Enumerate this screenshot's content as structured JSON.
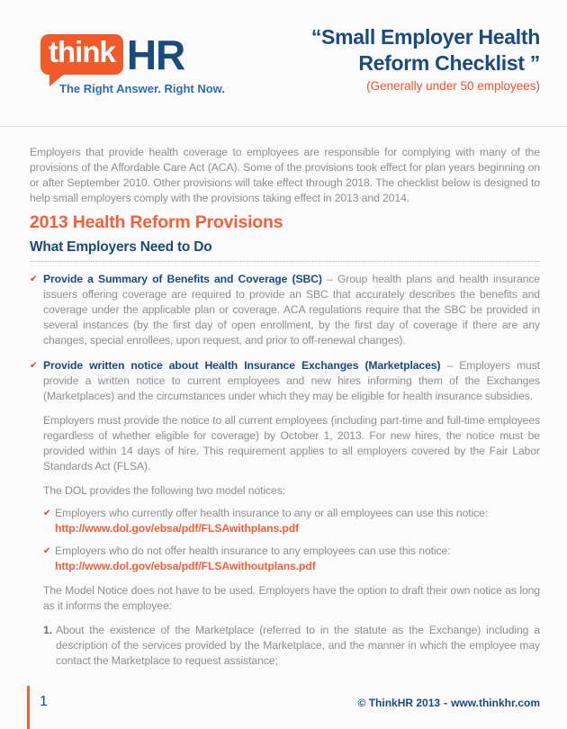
{
  "colors": {
    "navy": "#1b4a7e",
    "heading_orange": "#f2603c",
    "logo_orange": "#f15b2b",
    "subtitle_orange": "#f2552d",
    "check_red": "#e2402e",
    "body_gray": "#8f8f8f",
    "tagline_blue": "#2d6db0"
  },
  "icons": {
    "check": "✔"
  },
  "header": {
    "logo": {
      "bubble_text": "think",
      "suffix": "HR",
      "tagline": "The Right Answer. Right Now."
    },
    "title_line1": "“Small Employer Health",
    "title_line2": "Reform Checklist ”",
    "subtitle": "(Generally under 50 employees)"
  },
  "intro": "Employers that provide health coverage to employees are responsible for complying with many of the provisions of the Affordable Care Act (ACA).  Some of the provisions took effect for plan years beginning on or after September 2010.  Other provisions will take effect through 2018. The checklist below is designed to help small employers comply with the provisions taking effect in 2013 and 2014.",
  "section": {
    "heading": "2013 Health Reform Provisions",
    "subheading": "What Employers Need to Do"
  },
  "bullets": [
    {
      "lead": "Provide a Summary of Benefits and Coverage (SBC)",
      "text": "– Group health plans and health insurance issuers offering coverage are required to provide an SBC that accurately describes the benefits and coverage under the applicable plan or coverage. ACA regulations require that the SBC be provided in several instances (by the first day of open enrollment, by the first day of coverage if there are any changes, special enrollees, upon request, and prior to off-renewal changes)."
    },
    {
      "lead": "Provide written notice about Health Insurance Exchanges (Marketplaces)",
      "text": "– Employers must provide a written notice to current employees and new hires informing them of the Exchanges (Marketplaces) and the circumstances under which they may be eligible for health insurance subsidies."
    }
  ],
  "paragraphs": {
    "notice_timing": "Employers must provide the notice to all current employees (including part-time and full-time employees regardless of whether eligible for coverage) by October 1, 2013.  For new hires, the notice must be provided within 14 days of hire.  This requirement applies to all employers covered by the Fair Labor Standards Act (FLSA).",
    "dol_intro": "The DOL provides the following two model notices:",
    "model_notice": "The Model Notice does not have to be used. Employers have the option to draft their own notice as long as it informs the employee:"
  },
  "sub_bullets": [
    {
      "text": "Employers who currently offer health insurance to any or all employees can use this notice:",
      "url": "http://www.dol.gov/ebsa/pdf/FLSAwithplans.pdf"
    },
    {
      "text": "Employers who do not offer health insurance to any employees can use this notice:",
      "url": "http://www.dol.gov/ebsa/pdf/FLSAwithoutplans.pdf"
    }
  ],
  "numbered_items": [
    {
      "number": "1.",
      "text": "About the existence of the Marketplace (referred to in the statute as the Exchange) including a description of the services provided by the Marketplace, and the manner in which the employee may contact the Marketplace to request assistance;"
    }
  ],
  "footer": {
    "page_number": "1",
    "copyright": "© ThinkHR 2013",
    "separator": "-",
    "website": "www.thinkhr.com"
  }
}
